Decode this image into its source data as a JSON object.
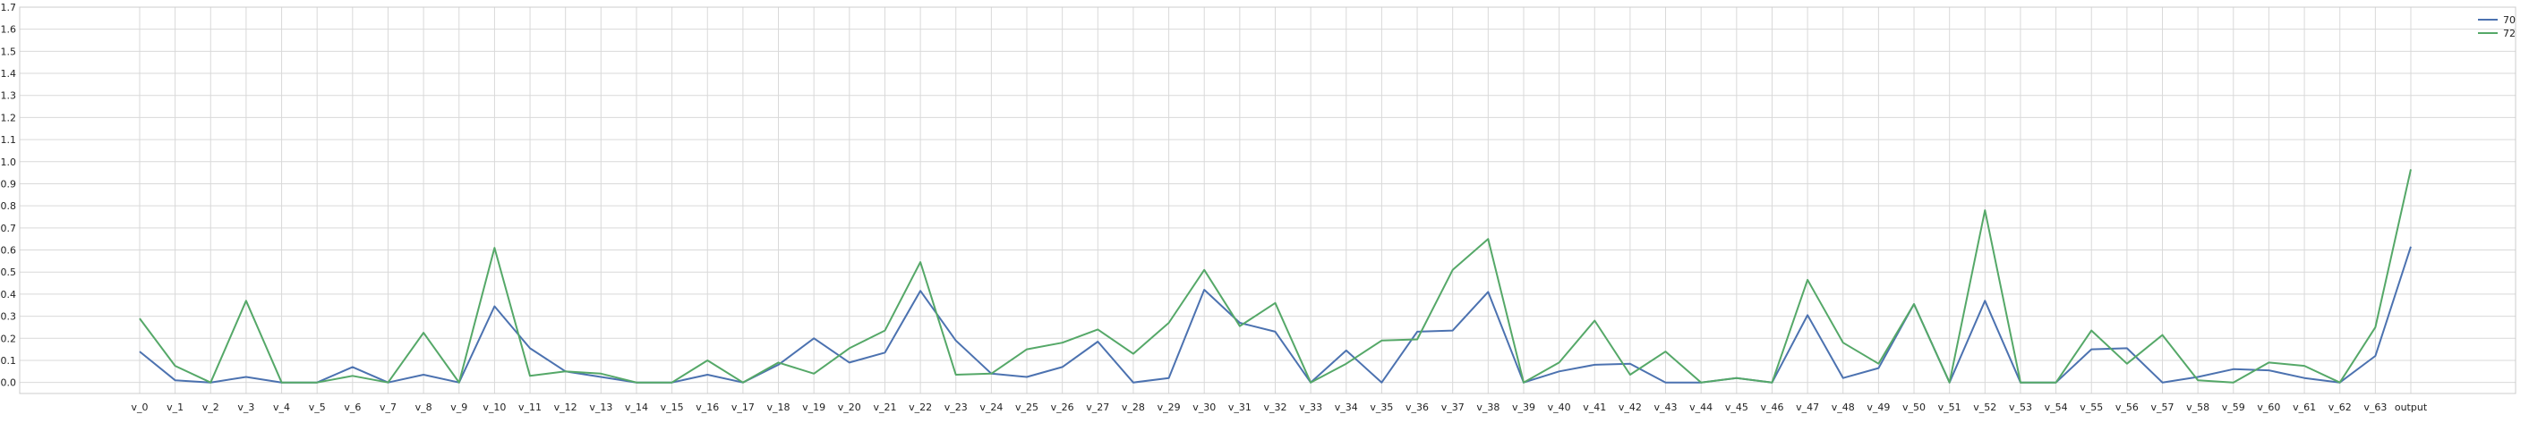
{
  "chart_data": {
    "type": "line",
    "title": "",
    "xlabel": "",
    "ylabel": "",
    "ylim": [
      -0.05,
      1.7
    ],
    "yticks": [
      "0.0",
      "0.1",
      "0.2",
      "0.3",
      "0.4",
      "0.5",
      "0.6",
      "0.7",
      "0.8",
      "0.9",
      "1.0",
      "1.1",
      "1.2",
      "1.3",
      "1.4",
      "1.5",
      "1.6",
      "1.7"
    ],
    "categories": [
      "v_0",
      "v_1",
      "v_2",
      "v_3",
      "v_4",
      "v_5",
      "v_6",
      "v_7",
      "v_8",
      "v_9",
      "v_10",
      "v_11",
      "v_12",
      "v_13",
      "v_14",
      "v_15",
      "v_16",
      "v_17",
      "v_18",
      "v_19",
      "v_20",
      "v_21",
      "v_22",
      "v_23",
      "v_24",
      "v_25",
      "v_26",
      "v_27",
      "v_28",
      "v_29",
      "v_30",
      "v_31",
      "v_32",
      "v_33",
      "v_34",
      "v_35",
      "v_36",
      "v_37",
      "v_38",
      "v_39",
      "v_40",
      "v_41",
      "v_42",
      "v_43",
      "v_44",
      "v_45",
      "v_46",
      "v_47",
      "v_48",
      "v_49",
      "v_50",
      "v_51",
      "v_52",
      "v_53",
      "v_54",
      "v_55",
      "v_56",
      "v_57",
      "v_58",
      "v_59",
      "v_60",
      "v_61",
      "v_62",
      "v_63",
      "output"
    ],
    "grid": true,
    "legend_position": "top-right",
    "series": [
      {
        "name": "70",
        "color": "#4c72b0",
        "values": [
          0.14,
          0.01,
          0.0,
          0.025,
          0.0,
          0.0,
          0.07,
          0.0,
          0.035,
          0.0,
          0.345,
          0.155,
          0.05,
          0.025,
          0.0,
          0.0,
          0.035,
          0.0,
          0.08,
          0.2,
          0.09,
          0.135,
          0.415,
          0.19,
          0.04,
          0.025,
          0.07,
          0.185,
          0.0,
          0.02,
          0.42,
          0.27,
          0.23,
          0.0,
          0.145,
          0.0,
          0.23,
          0.235,
          0.41,
          0.0,
          0.05,
          0.08,
          0.085,
          0.0,
          0.0,
          0.02,
          0.0,
          0.305,
          0.02,
          0.065,
          0.355,
          0.0,
          0.37,
          0.0,
          0.0,
          0.15,
          0.155,
          0.0,
          0.025,
          0.06,
          0.055,
          0.02,
          0.0,
          0.12,
          0.615
        ]
      },
      {
        "name": "72",
        "color": "#55a868",
        "values": [
          0.29,
          0.075,
          0.0,
          0.37,
          0.0,
          0.0,
          0.03,
          0.0,
          0.225,
          0.0,
          0.61,
          0.03,
          0.05,
          0.04,
          0.0,
          0.0,
          0.1,
          0.0,
          0.09,
          0.04,
          0.155,
          0.235,
          0.545,
          0.035,
          0.04,
          0.15,
          0.18,
          0.24,
          0.13,
          0.27,
          0.51,
          0.255,
          0.36,
          0.0,
          0.085,
          0.19,
          0.195,
          0.51,
          0.65,
          0.0,
          0.09,
          0.28,
          0.035,
          0.14,
          0.0,
          0.02,
          0.0,
          0.465,
          0.18,
          0.085,
          0.355,
          0.0,
          0.78,
          0.0,
          0.0,
          0.235,
          0.085,
          0.215,
          0.01,
          0.0,
          0.09,
          0.075,
          0.0,
          0.25,
          0.965
        ]
      }
    ]
  }
}
